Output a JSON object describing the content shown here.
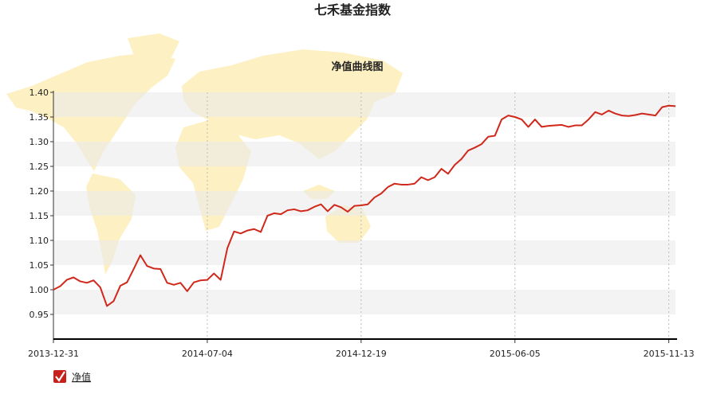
{
  "chart_data": {
    "type": "line",
    "title": "七禾基金指数",
    "subtitle": "净值曲线图",
    "categories": [
      "2013-12-31",
      null,
      null,
      null,
      null,
      null,
      null,
      null,
      null,
      null,
      null,
      null,
      null,
      null,
      null,
      null,
      null,
      null,
      null,
      null,
      null,
      null,
      null,
      "2014-07-04",
      null,
      null,
      null,
      null,
      null,
      null,
      null,
      null,
      null,
      null,
      null,
      null,
      null,
      null,
      null,
      null,
      null,
      null,
      null,
      null,
      null,
      null,
      "2014-12-19",
      null,
      null,
      null,
      null,
      null,
      null,
      null,
      null,
      null,
      null,
      null,
      null,
      null,
      null,
      null,
      null,
      null,
      null,
      null,
      null,
      null,
      null,
      "2015-06-05",
      null,
      null,
      null,
      null,
      null,
      null,
      null,
      null,
      null,
      null,
      null,
      null,
      null,
      null,
      null,
      null,
      null,
      null,
      null,
      null,
      null,
      null,
      "2015-11-13",
      null
    ],
    "series": [
      {
        "name": "净值",
        "color": "#d0281b",
        "values": [
          1.0,
          1.007,
          1.02,
          1.025,
          1.017,
          1.014,
          1.019,
          1.005,
          0.967,
          0.977,
          1.008,
          1.015,
          1.042,
          1.07,
          1.048,
          1.043,
          1.042,
          1.014,
          1.01,
          1.014,
          0.997,
          1.015,
          1.019,
          1.02,
          1.033,
          1.02,
          1.084,
          1.118,
          1.114,
          1.12,
          1.123,
          1.117,
          1.15,
          1.155,
          1.153,
          1.161,
          1.163,
          1.159,
          1.161,
          1.168,
          1.173,
          1.159,
          1.172,
          1.167,
          1.158,
          1.17,
          1.171,
          1.173,
          1.187,
          1.195,
          1.208,
          1.215,
          1.213,
          1.213,
          1.215,
          1.228,
          1.222,
          1.228,
          1.245,
          1.235,
          1.253,
          1.265,
          1.282,
          1.288,
          1.295,
          1.31,
          1.312,
          1.345,
          1.353,
          1.35,
          1.345,
          1.33,
          1.345,
          1.33,
          1.332,
          1.333,
          1.334,
          1.33,
          1.333,
          1.333,
          1.345,
          1.36,
          1.355,
          1.363,
          1.357,
          1.353,
          1.352,
          1.354,
          1.357,
          1.355,
          1.353,
          1.37,
          1.373,
          1.372
        ]
      }
    ],
    "ylim": [
      0.9,
      1.4
    ],
    "yticks": [
      {
        "value": 0.95,
        "label": "0.95"
      },
      {
        "value": 1.0,
        "label": "1.00"
      },
      {
        "value": 1.05,
        "label": "1.05"
      },
      {
        "value": 1.1,
        "label": "1.10"
      },
      {
        "value": 1.15,
        "label": "1.15"
      },
      {
        "value": 1.2,
        "label": "1.20"
      },
      {
        "value": 1.25,
        "label": "1.25"
      },
      {
        "value": 1.3,
        "label": "1.30"
      },
      {
        "value": 1.35,
        "label": "1.35"
      },
      {
        "value": 1.4,
        "label": "1.40"
      }
    ],
    "grid": true
  }
}
